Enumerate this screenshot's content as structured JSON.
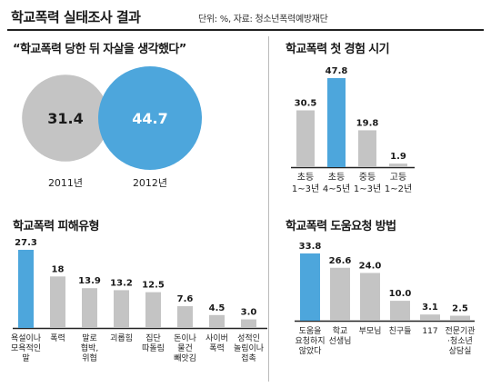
{
  "header": {
    "title": "학교폭력 실태조사 결과",
    "source": "단위: %, 자료: 청소년폭력예방재단"
  },
  "colors": {
    "highlight": "#4da6dc",
    "normal": "#c4c4c4",
    "axis": "#222222"
  },
  "chart_data": [
    {
      "type": "bubble",
      "title": "“학교폭력 당한 뒤 자살을 생각했다”",
      "categories": [
        "2011년",
        "2012년"
      ],
      "values": [
        31.4,
        44.7
      ],
      "highlight": [
        false,
        true
      ]
    },
    {
      "type": "bar",
      "title": "학교폭력 첫 경험 시기",
      "categories": [
        [
          "초등",
          "1~3년"
        ],
        [
          "초등",
          "4~5년"
        ],
        [
          "중등",
          "1~3년"
        ],
        [
          "고등",
          "1~2년"
        ]
      ],
      "values": [
        30.5,
        47.8,
        19.8,
        1.9
      ],
      "value_labels": [
        "30.5",
        "47.8",
        "19.8",
        "1.9"
      ],
      "highlight": [
        false,
        true,
        false,
        false
      ],
      "ylim": [
        0,
        47.8
      ]
    },
    {
      "type": "bar",
      "title": "학교폭력 피해유형",
      "categories": [
        [
          "욕설이나",
          "모욕적인",
          "말"
        ],
        [
          "폭력"
        ],
        [
          "말로",
          "협박,",
          "위협"
        ],
        [
          "괴롭힘"
        ],
        [
          "집단",
          "따돌림"
        ],
        [
          "돈이나",
          "물건",
          "빼앗김"
        ],
        [
          "사이버",
          "폭력"
        ],
        [
          "성적인",
          "놀림이나",
          "접촉"
        ]
      ],
      "values": [
        27.3,
        18,
        13.9,
        13.2,
        12.5,
        7.6,
        4.5,
        3.0
      ],
      "value_labels": [
        "27.3",
        "18",
        "13.9",
        "13.2",
        "12.5",
        "7.6",
        "4.5",
        "3.0"
      ],
      "highlight": [
        true,
        false,
        false,
        false,
        false,
        false,
        false,
        false
      ],
      "ylim": [
        0,
        27.3
      ]
    },
    {
      "type": "bar",
      "title": "학교폭력 도움요청 방법",
      "categories": [
        [
          "도움을",
          "요청하지",
          "않았다"
        ],
        [
          "학교",
          "선생님"
        ],
        [
          "부모님"
        ],
        [
          "친구들"
        ],
        [
          "117"
        ],
        [
          "전문기관",
          "·청소년",
          "상담실"
        ]
      ],
      "values": [
        33.8,
        26.6,
        24.0,
        10.0,
        3.1,
        2.5
      ],
      "value_labels": [
        "33.8",
        "26.6",
        "24.0",
        "10.0",
        "3.1",
        "2.5"
      ],
      "highlight": [
        true,
        false,
        false,
        false,
        false,
        false
      ],
      "ylim": [
        0,
        33.8
      ]
    }
  ]
}
